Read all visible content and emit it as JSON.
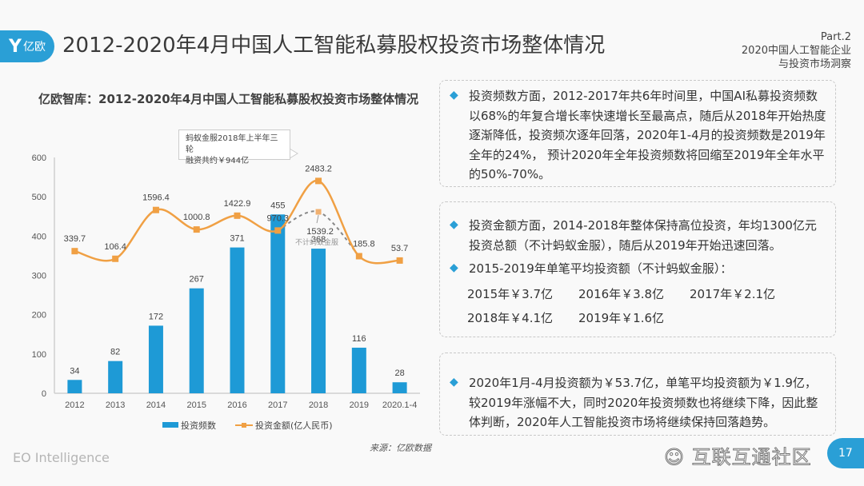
{
  "header": {
    "logo_text": "亿欧",
    "title": "2012-2020年4月中国人工智能私募股权投资市场整体情况",
    "part_label": "Part.2",
    "part_line1": "2020中国人工智能企业",
    "part_line2": "与投资市场洞察"
  },
  "chart_data": {
    "type": "bar",
    "title": "亿欧智库：2012-2020年4月中国人工智能私募股权投资市场整体情况",
    "categories": [
      "2012",
      "2013",
      "2014",
      "2015",
      "2016",
      "2017",
      "2018",
      "2019",
      "2020.1-4"
    ],
    "ylim": [
      0,
      600
    ],
    "yticks": [
      "0",
      "100",
      "200",
      "300",
      "400",
      "500",
      "600"
    ],
    "series": [
      {
        "name": "投资频数",
        "kind": "bar",
        "color": "#1e9ad6",
        "values": [
          34,
          82,
          172,
          267,
          371,
          455,
          368,
          116,
          28
        ]
      },
      {
        "name": "投资金额(亿人民币)",
        "kind": "line",
        "color": "#f0a044",
        "values": [
          339.7,
          106.4,
          1596.4,
          1000.8,
          1422.9,
          970.3,
          2483.2,
          185.8,
          53.7
        ],
        "labels": [
          "339.7",
          "106.4",
          "1596.4",
          "1000.8",
          "1422.9",
          "970.3",
          "2483.2",
          "185.8",
          "53.7"
        ]
      },
      {
        "name": "不计蚂蚁金服",
        "kind": "dashed-line",
        "color": "#888888",
        "points": [
          {
            "category": "2017",
            "value": 970.3
          },
          {
            "category": "2018",
            "value": 1539.2
          },
          {
            "category": "2019",
            "value": 185.8
          }
        ],
        "label": "1539.2"
      }
    ],
    "annotations": {
      "callout": "蚂蚁金服2018年上半年三轮融资共约￥944亿",
      "excl_label": "不计蚂蚁金服"
    },
    "legend": {
      "position": "bottom",
      "bar_label": "投资频数",
      "line_label": "投资金额(亿人民币)"
    },
    "source": "来源：亿欧数据"
  },
  "callout": {
    "line1": "蚂蚁金服2018年上半年三轮",
    "line2": "融资共约￥944亿"
  },
  "panels": {
    "p1": "投资频数方面，2012-2017年共6年时间里，中国AI私募投资频数以68%的年复合增长率快速增长至最高点，随后从2018年开始热度逐渐降低，投资频次逐年回落，2020年1-4月的投资频数是2019年全年的24%， 预计2020年全年投资频数将回缩至2019年全年水平的50%-70%。",
    "p2a": "投资金额方面，2014-2018年整体保持高位投资，年均1300亿元投资总额（不计蚂蚁金服），随后从2019年开始迅速回落。",
    "p2b": "2015-2019年单笔平均投资额（不计蚂蚁金服）：",
    "avg": [
      "2015年￥3.7亿",
      "2016年￥3.8亿",
      "2017年￥2.1亿",
      "2018年￥4.1亿",
      "2019年￥1.6亿"
    ],
    "p3": "2020年1月-4月投资额为￥53.7亿，单笔平均投资额为￥1.9亿，较2019年涨幅不大，同时2020年投资频数也将继续下降，因此整体判断，2020年人工智能投资市场将继续保持回落趋势。"
  },
  "footer": {
    "brand": "EO Intelligence",
    "watermark": "互联互通社区",
    "page_number": "17"
  }
}
